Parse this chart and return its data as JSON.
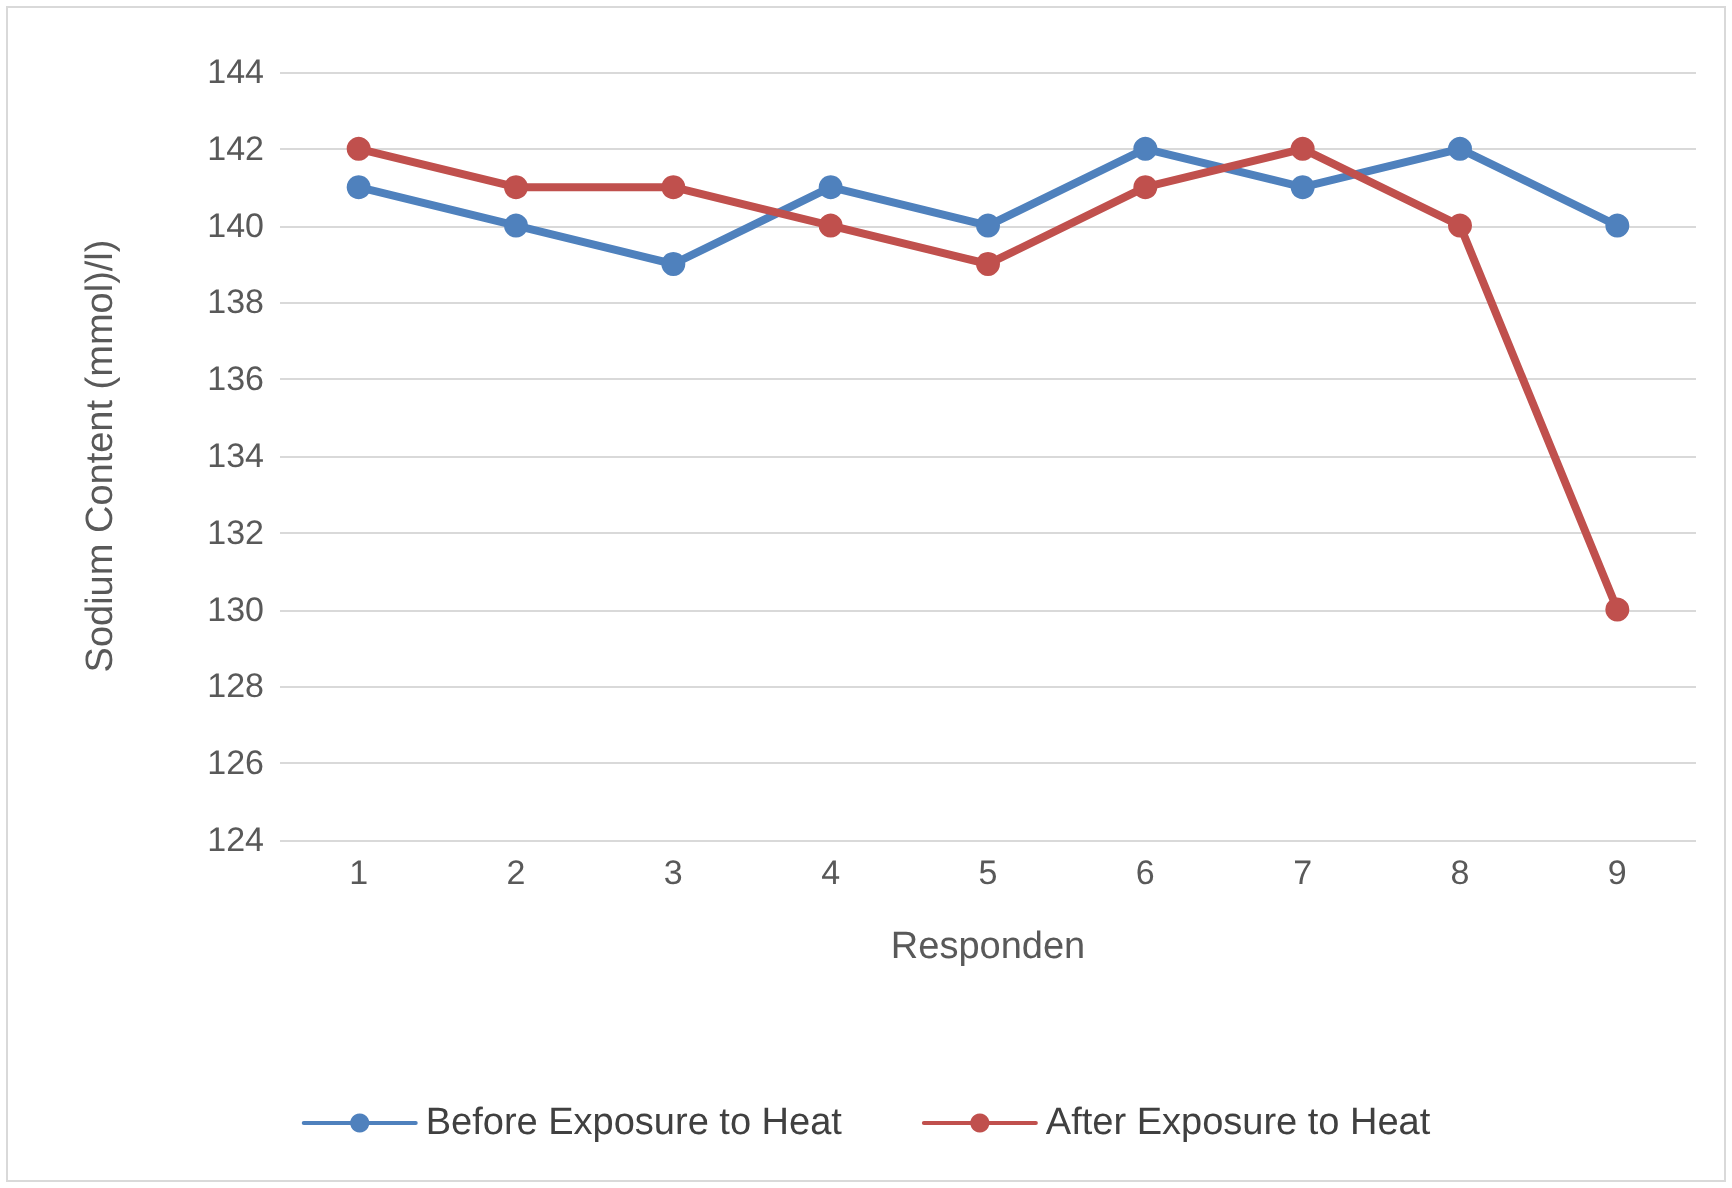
{
  "chart_data": {
    "type": "line",
    "xlabel": "Responden",
    "ylabel": "Sodium Content (mmol)/l)",
    "categories": [
      "1",
      "2",
      "3",
      "4",
      "5",
      "6",
      "7",
      "8",
      "9"
    ],
    "series": [
      {
        "name": "Before Exposure to Heat",
        "color": "#4f81bd",
        "values": [
          141,
          140,
          139,
          141,
          140,
          142,
          141,
          142,
          140
        ]
      },
      {
        "name": "After Exposure to Heat",
        "color": "#c0504d",
        "values": [
          142,
          141,
          141,
          140,
          139,
          141,
          142,
          140,
          130
        ]
      }
    ],
    "ylim": [
      124,
      144
    ],
    "yticks": [
      124,
      126,
      128,
      130,
      132,
      134,
      136,
      138,
      140,
      142,
      144
    ],
    "grid": "y",
    "legend": "bottom",
    "marker": "circle",
    "line_style": "solid"
  }
}
